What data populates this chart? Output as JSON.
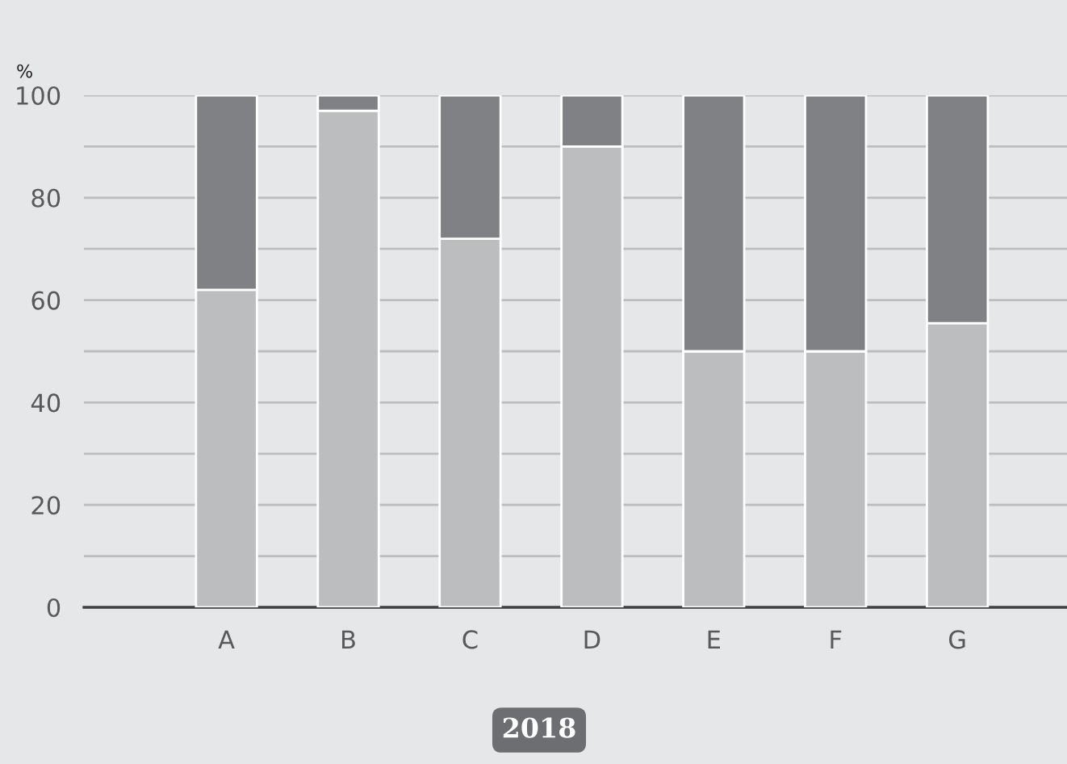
{
  "chart_data": {
    "type": "bar",
    "stacked": true,
    "ylabel": "%",
    "xlabel": "2018",
    "categories": [
      "A",
      "B",
      "C",
      "D",
      "E",
      "F",
      "G"
    ],
    "series": [
      {
        "color": "#bcbdbf",
        "values": [
          62,
          97,
          72,
          90,
          50,
          50,
          55.5
        ]
      },
      {
        "color": "#808184",
        "values": [
          38,
          3,
          28,
          10,
          50,
          50,
          44.5
        ]
      }
    ],
    "ylim": [
      0,
      100
    ],
    "yticks": [
      0,
      {
        "value": 10,
        "label": null
      },
      20,
      {
        "value": 30,
        "label": null
      },
      40,
      {
        "value": 50,
        "label": null
      },
      60,
      {
        "value": 70,
        "label": null
      },
      80,
      {
        "value": 90,
        "label": null
      },
      100
    ],
    "grid": "y",
    "legend": false
  }
}
